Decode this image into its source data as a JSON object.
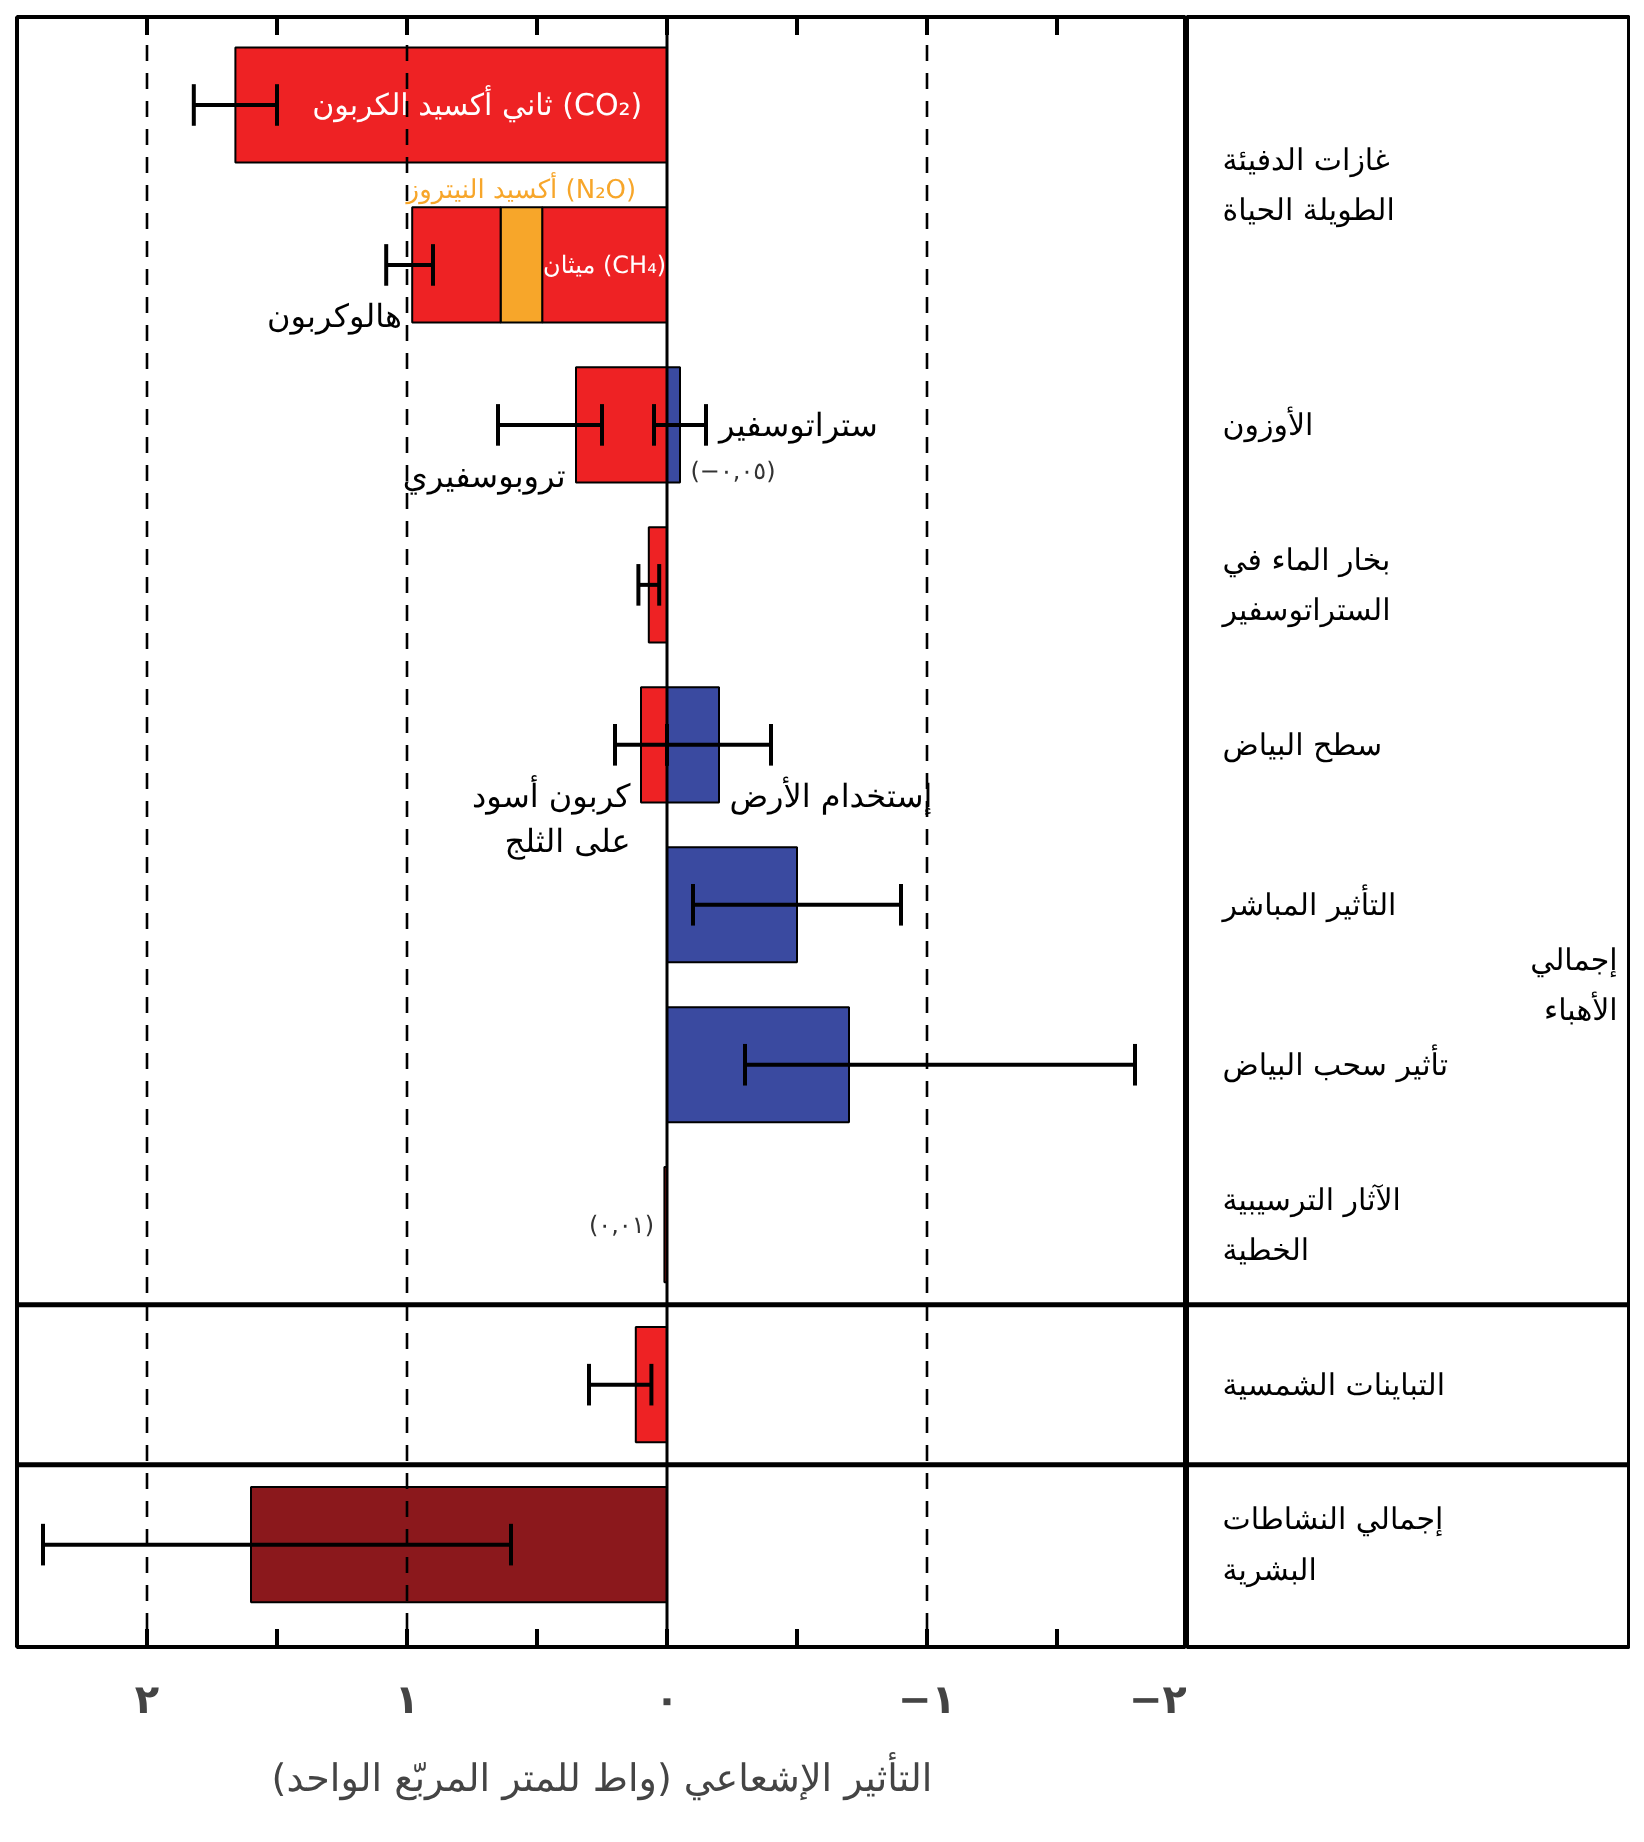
{
  "chart_data": {
    "type": "bar",
    "orientation": "horizontal",
    "stacked": true,
    "xlabel": "التأثير الإشعاعي (واط للمتر المربّع الواحد)",
    "categories": [
      "غازات الدفيئة الطويلة الحياة",
      null,
      "الأوزون",
      "بخار الماء في الستراتوسفير",
      "سطح البياض",
      "التأثير المباشر",
      "تأثير سحب البياض",
      "الآثار الترسيبية الخطية",
      "التباينات الشمسية",
      "إجمالي النشاطات البشرية"
    ],
    "y2_categories": [
      null,
      null,
      null,
      null,
      null,
      "إجمالي الأهباء",
      null,
      null,
      null,
      null
    ],
    "series": [
      {
        "name": "ثاني أكسيد الكربون (CO₂)",
        "color": "#ee2224",
        "values": [
          1.66,
          null,
          null,
          null,
          null,
          null,
          null,
          null,
          null,
          null
        ],
        "errors": [
          [
            1.5,
            1.82
          ],
          null,
          null,
          null,
          null,
          null,
          null,
          null,
          null,
          null
        ]
      },
      {
        "name": "ميثان (CH₄)",
        "color": "#ee2224",
        "values": [
          null,
          0.48,
          null,
          null,
          null,
          null,
          null,
          null,
          null,
          null
        ]
      },
      {
        "name": "أكسيد النيتروز (N₂O)",
        "color": "#f7a62a",
        "values": [
          null,
          0.16,
          null,
          null,
          null,
          null,
          null,
          null,
          null,
          null
        ]
      },
      {
        "name": "هالوكربون",
        "color": "#ee2224",
        "values": [
          null,
          0.34,
          null,
          null,
          null,
          null,
          null,
          null,
          null,
          null
        ],
        "errors": [
          null,
          [
            0.9,
            1.08
          ],
          null,
          null,
          null,
          null,
          null,
          null,
          null,
          null
        ]
      },
      {
        "name": "تروبوسفيري",
        "color": "#ee2224",
        "values": [
          null,
          null,
          0.35,
          null,
          null,
          null,
          null,
          null,
          null,
          null
        ],
        "errors": [
          null,
          null,
          [
            0.25,
            0.65
          ],
          null,
          null,
          null,
          null,
          null,
          null,
          null
        ]
      },
      {
        "name": "ستراتوسفير",
        "color": "#3a4aa0",
        "values": [
          null,
          null,
          -0.05,
          null,
          null,
          null,
          null,
          null,
          null,
          null
        ],
        "errors": [
          null,
          null,
          [
            -0.15,
            0.05
          ],
          null,
          null,
          null,
          null,
          null,
          null,
          null
        ],
        "value_labels": [
          null,
          null,
          "(−٠,٠٥)",
          null,
          null,
          null,
          null,
          null,
          null,
          null
        ]
      },
      {
        "color": "#ee2224",
        "values": [
          null,
          null,
          null,
          0.07,
          null,
          null,
          null,
          null,
          null,
          null
        ],
        "errors": [
          null,
          null,
          null,
          [
            0.03,
            0.11
          ],
          null,
          null,
          null,
          null,
          null,
          null
        ]
      },
      {
        "name": "إستخدام الأرض",
        "color": "#3a4aa0",
        "values": [
          null,
          null,
          null,
          null,
          -0.2,
          null,
          null,
          null,
          null,
          null
        ],
        "errors": [
          null,
          null,
          null,
          null,
          [
            -0.4,
            0.0
          ],
          null,
          null,
          null,
          null,
          null
        ]
      },
      {
        "name": "كربون أسود على الثلج",
        "color": "#ee2224",
        "values": [
          null,
          null,
          null,
          null,
          0.1,
          null,
          null,
          null,
          null,
          null
        ],
        "errors": [
          null,
          null,
          null,
          null,
          [
            0.0,
            0.2
          ],
          null,
          null,
          null,
          null,
          null
        ]
      },
      {
        "color": "#3a4aa0",
        "values": [
          null,
          null,
          null,
          null,
          null,
          -0.5,
          null,
          null,
          null,
          null
        ],
        "errors": [
          null,
          null,
          null,
          null,
          null,
          [
            -0.9,
            -0.1
          ],
          null,
          null,
          null,
          null
        ]
      },
      {
        "color": "#3a4aa0",
        "values": [
          null,
          null,
          null,
          null,
          null,
          null,
          -0.7,
          null,
          null,
          null
        ],
        "errors": [
          null,
          null,
          null,
          null,
          null,
          null,
          [
            -1.8,
            -0.3
          ],
          null,
          null,
          null
        ]
      },
      {
        "color": "#ee2224",
        "values": [
          null,
          null,
          null,
          null,
          null,
          null,
          null,
          0.01,
          null,
          null
        ],
        "value_labels": [
          null,
          null,
          null,
          null,
          null,
          null,
          null,
          "(٠,٠١)",
          null,
          null
        ]
      },
      {
        "color": "#ee2224",
        "values": [
          null,
          null,
          null,
          null,
          null,
          null,
          null,
          null,
          0.12,
          null
        ],
        "errors": [
          null,
          null,
          null,
          null,
          null,
          null,
          null,
          null,
          [
            0.06,
            0.3
          ],
          null
        ]
      },
      {
        "color": "#8b181c",
        "values": [
          null,
          null,
          null,
          null,
          null,
          null,
          null,
          null,
          null,
          1.6
        ],
        "errors": [
          null,
          null,
          null,
          null,
          null,
          null,
          null,
          null,
          null,
          [
            0.6,
            2.4
          ]
        ]
      }
    ],
    "xlim": [
      2.5,
      -2
    ],
    "xticks": [
      {
        "value": 2,
        "label": "٢"
      },
      {
        "value": 1.5,
        "label": null
      },
      {
        "value": 1,
        "label": "١"
      },
      {
        "value": 0.5,
        "label": null
      },
      {
        "value": 0,
        "label": "٠"
      },
      {
        "value": -0.5,
        "label": null
      },
      {
        "value": -1,
        "label": "−١"
      },
      {
        "value": -1.5,
        "label": null
      },
      {
        "value": -2,
        "label": "−٢"
      }
    ],
    "grid": "x",
    "ref_lines": [
      {
        "axis": "x",
        "value": 0,
        "color": "#000000"
      }
    ]
  }
}
